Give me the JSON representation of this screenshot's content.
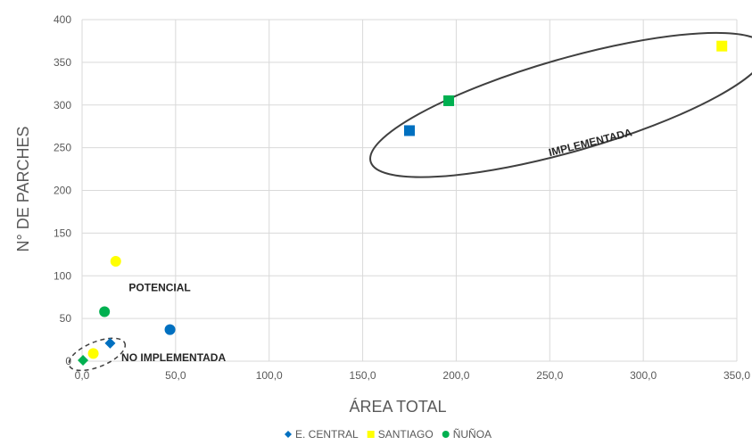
{
  "chart_data": {
    "type": "scatter",
    "xlabel": "ÁREA TOTAL",
    "ylabel": "N° DE PARCHES",
    "xlim": [
      0,
      350
    ],
    "ylim": [
      0,
      400
    ],
    "xticks": [
      "0,0",
      "50,0",
      "100,0",
      "150,0",
      "200,0",
      "250,0",
      "300,0",
      "350,0"
    ],
    "yticks": [
      "0",
      "50",
      "100",
      "150",
      "200",
      "250",
      "300",
      "350",
      "400"
    ],
    "grid": true,
    "legend_position": "bottom",
    "series": [
      {
        "name": "E. CENTRAL",
        "color": "#0070C0",
        "legend_marker": "diamond",
        "points": [
          {
            "x": 15,
            "y": 21,
            "marker": "diamond"
          },
          {
            "x": 47,
            "y": 37,
            "marker": "circle"
          },
          {
            "x": 175,
            "y": 270,
            "marker": "square"
          }
        ]
      },
      {
        "name": "SANTIAGO",
        "color": "#FFFF00",
        "legend_marker": "square",
        "points": [
          {
            "x": 6,
            "y": 9,
            "marker": "circle"
          },
          {
            "x": 18,
            "y": 117,
            "marker": "circle"
          },
          {
            "x": 342,
            "y": 369,
            "marker": "square"
          }
        ]
      },
      {
        "name": "ÑUÑOA",
        "color": "#00B050",
        "legend_marker": "circle",
        "points": [
          {
            "x": 0.5,
            "y": 1,
            "marker": "diamond"
          },
          {
            "x": 12,
            "y": 58,
            "marker": "circle"
          },
          {
            "x": 196,
            "y": 305,
            "marker": "square"
          }
        ]
      }
    ],
    "annotations": [
      {
        "text": "POTENCIAL",
        "x": 25,
        "y": 82
      },
      {
        "text": "NO IMPLEMENTADA",
        "x": 21,
        "y": 0
      },
      {
        "text": "IMPLEMENTADA",
        "x": 250,
        "y": 240
      }
    ]
  }
}
